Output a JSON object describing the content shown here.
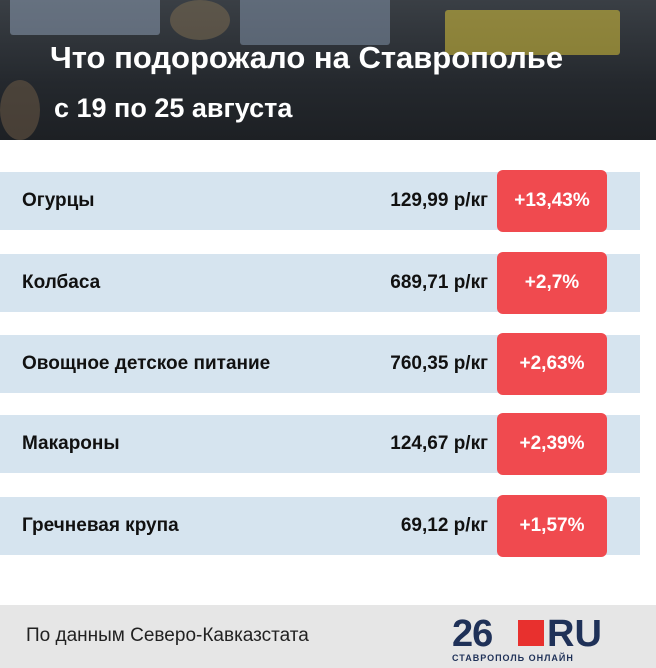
{
  "header": {
    "title": "Что подорожало на Ставрополье",
    "subtitle": "с 19 по 25 августа"
  },
  "table": {
    "rows": [
      {
        "name": "Огурцы",
        "price": "129,99 р/кг",
        "change": "+13,43%"
      },
      {
        "name": "Колбаса",
        "price": "689,71 р/кг",
        "change": "+2,7%"
      },
      {
        "name": "Овощное детское питание",
        "price": "760,35 р/кг",
        "change": "+2,63%"
      },
      {
        "name": "Макароны",
        "price": "124,67 р/кг",
        "change": "+2,39%"
      },
      {
        "name": "Гречневая крупа",
        "price": "69,12 р/кг",
        "change": "+1,57%"
      }
    ]
  },
  "footer": {
    "source": "По данным Северо-Кавказстата",
    "logo_number": "26",
    "logo_domain": "RU",
    "logo_caption": "СТАВРОПОЛЬ ОНЛАЙН"
  }
}
